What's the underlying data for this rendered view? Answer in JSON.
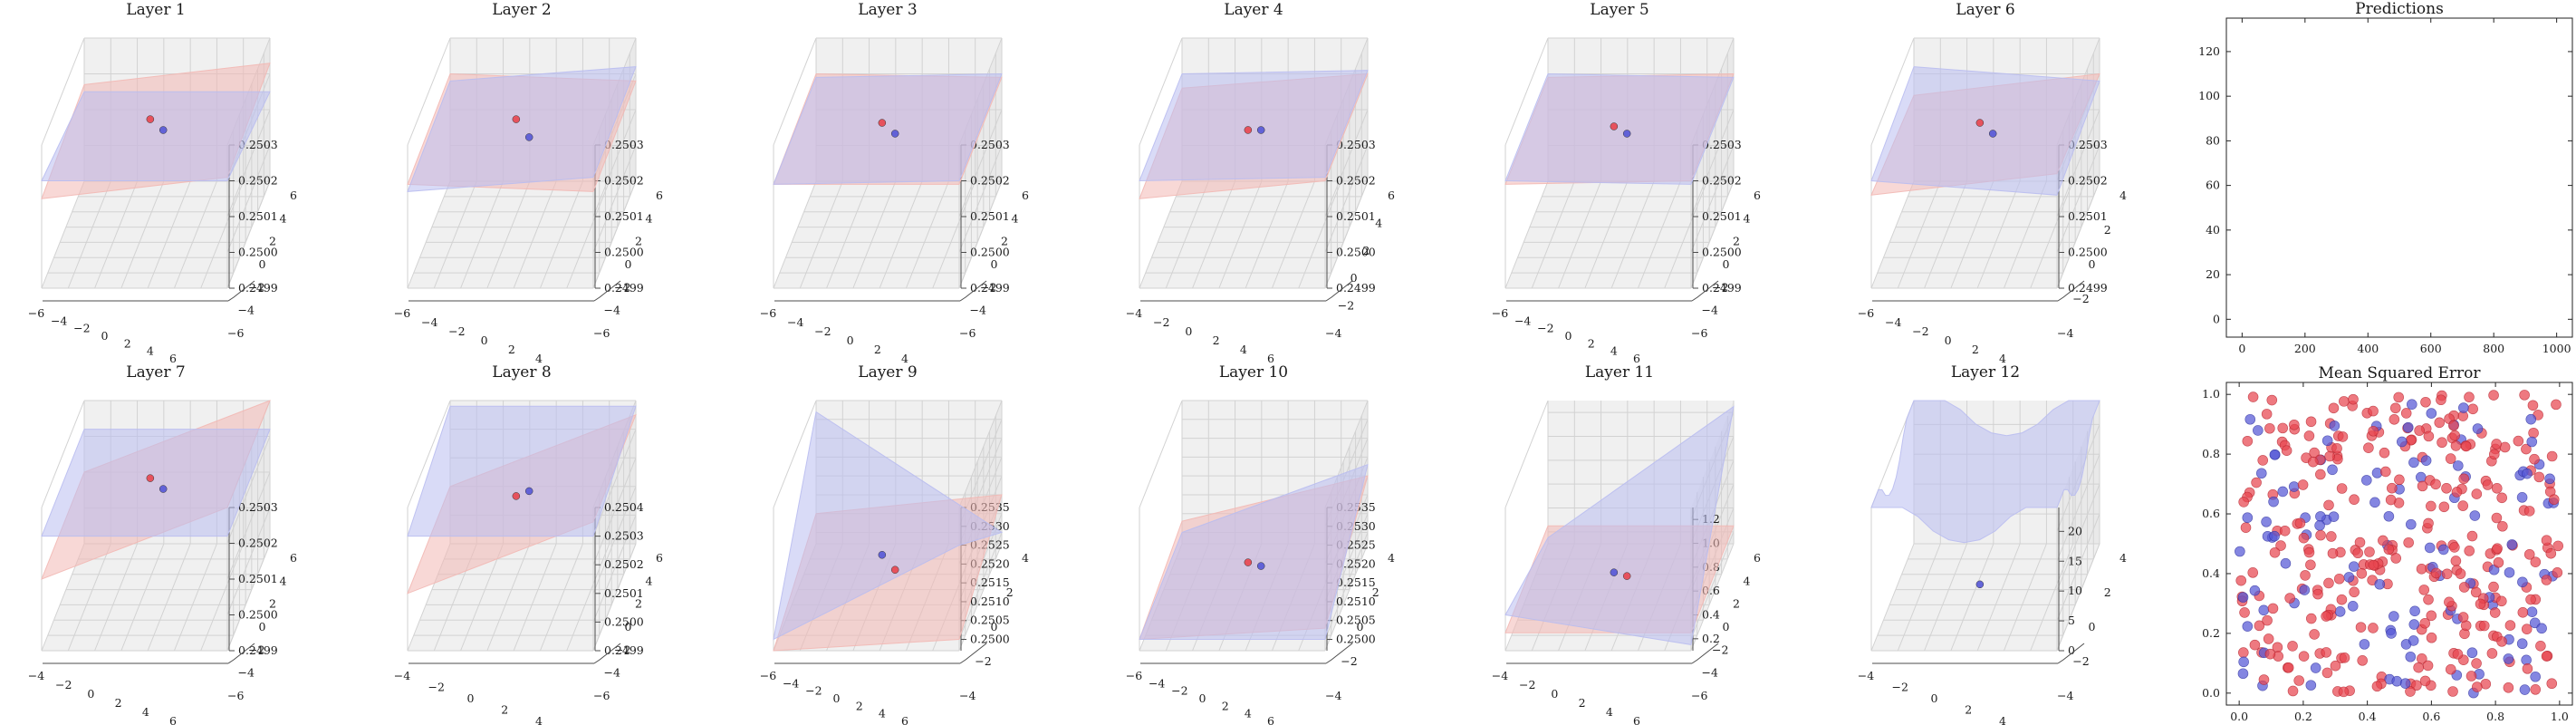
{
  "figure": {
    "panel_titles": [
      "Layer 1",
      "Layer 2",
      "Layer 3",
      "Layer 4",
      "Layer 5",
      "Layer 6",
      "Layer 7",
      "Layer 8",
      "Layer 9",
      "Layer 10",
      "Layer 11",
      "Layer 12"
    ]
  },
  "colors": {
    "red": "#e8454f",
    "blue": "#5557d6",
    "red_surface": "#f2b8b4",
    "blue_surface": "#b9bdf0"
  },
  "chart_data": [
    {
      "type": "surface3d",
      "title": "Layer 1",
      "xlabel": "",
      "ylabel": "",
      "zlabel": "",
      "xticks": [
        "−6",
        "−4",
        "−2",
        "0",
        "2",
        "4",
        "6"
      ],
      "yticks": [
        "−6",
        "−4",
        "−2",
        "0",
        "2",
        "4",
        "6"
      ],
      "zticks": [
        "0.2499",
        "0.2500",
        "0.2501",
        "0.2502",
        "0.2503"
      ],
      "zlim": [
        0.2499,
        0.2503
      ],
      "series": [
        {
          "name": "red plane",
          "z_corners": [
            0.25017,
            0.25023,
            0.25021,
            0.25015
          ]
        },
        {
          "name": "blue plane",
          "z_corners": [
            0.25015,
            0.25015,
            0.2502,
            0.2502
          ]
        }
      ],
      "points": [
        {
          "series": "red",
          "z": 0.25022
        },
        {
          "series": "blue",
          "z": 0.2502
        }
      ]
    },
    {
      "type": "surface3d",
      "title": "Layer 2",
      "xticks": [
        "−6",
        "−4",
        "−2",
        "0",
        "2",
        "4"
      ],
      "yticks": [
        "−6",
        "−4",
        "−2",
        "0",
        "2",
        "4",
        "6"
      ],
      "zticks": [
        "0.2499",
        "0.2500",
        "0.2501",
        "0.2502",
        "0.2503"
      ],
      "zlim": [
        0.2499,
        0.2503
      ],
      "series": [
        {
          "name": "red plane",
          "z_corners": [
            0.2502,
            0.25018,
            0.25017,
            0.25019
          ]
        },
        {
          "name": "blue plane",
          "z_corners": [
            0.25018,
            0.25022,
            0.25021,
            0.25017
          ]
        }
      ],
      "points": [
        {
          "series": "red",
          "z": 0.25022
        },
        {
          "series": "blue",
          "z": 0.25018
        }
      ]
    },
    {
      "type": "surface3d",
      "title": "Layer 3",
      "xticks": [
        "−6",
        "−4",
        "−2",
        "0",
        "2",
        "4"
      ],
      "yticks": [
        "−6",
        "−4",
        "−2",
        "0",
        "2",
        "4",
        "6"
      ],
      "zticks": [
        "0.2499",
        "0.2500",
        "0.2501",
        "0.2502",
        "0.2503"
      ],
      "zlim": [
        0.2499,
        0.2503
      ],
      "series": [
        {
          "name": "red plane",
          "z_corners": [
            0.2502,
            0.25019,
            0.25019,
            0.25019
          ]
        },
        {
          "name": "blue plane",
          "z_corners": [
            0.25019,
            0.2502,
            0.2502,
            0.25019
          ]
        }
      ],
      "points": [
        {
          "series": "red",
          "z": 0.25021
        },
        {
          "series": "blue",
          "z": 0.25019
        }
      ]
    },
    {
      "type": "surface3d",
      "title": "Layer 4",
      "xticks": [
        "−4",
        "−2",
        "0",
        "2",
        "4",
        "6"
      ],
      "yticks": [
        "−4",
        "−2",
        "0",
        "2",
        "4",
        "6"
      ],
      "zticks": [
        "0.2499",
        "0.2500",
        "0.2501",
        "0.2502",
        "0.2503"
      ],
      "zlim": [
        0.2499,
        0.2503
      ],
      "series": [
        {
          "name": "red plane",
          "z_corners": [
            0.25016,
            0.2502,
            0.2502,
            0.25015
          ]
        },
        {
          "name": "blue plane",
          "z_corners": [
            0.2502,
            0.25021,
            0.25021,
            0.2502
          ]
        }
      ],
      "points": [
        {
          "series": "red",
          "z": 0.25019
        },
        {
          "series": "blue",
          "z": 0.2502
        }
      ]
    },
    {
      "type": "surface3d",
      "title": "Layer 5",
      "xticks": [
        "−6",
        "−4",
        "−2",
        "0",
        "2",
        "4",
        "6"
      ],
      "yticks": [
        "−6",
        "−4",
        "−2",
        "0",
        "2",
        "4",
        "6"
      ],
      "zticks": [
        "0.2499",
        "0.2500",
        "0.2501",
        "0.2502",
        "0.2503"
      ],
      "zlim": [
        0.2499,
        0.2503
      ],
      "series": [
        {
          "name": "red plane",
          "z_corners": [
            0.25019,
            0.2502,
            0.2502,
            0.25019
          ]
        },
        {
          "name": "blue plane",
          "z_corners": [
            0.2502,
            0.25019,
            0.25019,
            0.2502
          ]
        }
      ],
      "points": [
        {
          "series": "red",
          "z": 0.2502
        },
        {
          "series": "blue",
          "z": 0.25019
        }
      ]
    },
    {
      "type": "surface3d",
      "title": "Layer 6",
      "xticks": [
        "−6",
        "−4",
        "−2",
        "0",
        "2",
        "4"
      ],
      "yticks": [
        "−4",
        "−2",
        "0",
        "2",
        "4"
      ],
      "zticks": [
        "0.2499",
        "0.2500",
        "0.2501",
        "0.2502",
        "0.2503"
      ],
      "zlim": [
        0.2499,
        0.2503
      ],
      "series": [
        {
          "name": "red plane",
          "z_corners": [
            0.25014,
            0.2502,
            0.25022,
            0.25016
          ]
        },
        {
          "name": "blue plane",
          "z_corners": [
            0.25022,
            0.25018,
            0.25016,
            0.2502
          ]
        }
      ],
      "points": [
        {
          "series": "red",
          "z": 0.25021
        },
        {
          "series": "blue",
          "z": 0.25019
        }
      ]
    },
    {
      "type": "surface3d",
      "title": "Layer 7",
      "xticks": [
        "−4",
        "−2",
        "0",
        "2",
        "4",
        "6"
      ],
      "yticks": [
        "−6",
        "−4",
        "−2",
        "0",
        "2",
        "4",
        "6"
      ],
      "zticks": [
        "0.2499",
        "0.2500",
        "0.2501",
        "0.2502",
        "0.2503"
      ],
      "zlim": [
        0.2499,
        0.2503
      ],
      "series": [
        {
          "name": "red plane",
          "z_corners": [
            0.2501,
            0.2503,
            0.2503,
            0.2501
          ]
        },
        {
          "name": "blue plane",
          "z_corners": [
            0.25022,
            0.25022,
            0.25022,
            0.25022
          ]
        }
      ],
      "points": [
        {
          "series": "red",
          "z": 0.25023
        },
        {
          "series": "blue",
          "z": 0.25021
        }
      ]
    },
    {
      "type": "surface3d",
      "title": "Layer 8",
      "xticks": [
        "−4",
        "−2",
        "0",
        "2",
        "4"
      ],
      "yticks": [
        "−6",
        "−4",
        "−2",
        "0",
        "2",
        "4",
        "6"
      ],
      "zticks": [
        "0.2499",
        "0.2500",
        "0.2501",
        "0.2502",
        "0.2503",
        "0.2504"
      ],
      "zlim": [
        0.2499,
        0.2504
      ],
      "series": [
        {
          "name": "red plane",
          "z_corners": [
            0.2501,
            0.25035,
            0.25035,
            0.2501
          ]
        },
        {
          "name": "blue surface",
          "z_corners": [
            0.25038,
            0.25038,
            0.2503,
            0.2503
          ]
        }
      ],
      "points": [
        {
          "series": "red",
          "z": 0.25025
        },
        {
          "series": "blue",
          "z": 0.25028
        }
      ]
    },
    {
      "type": "surface3d",
      "title": "Layer 9",
      "xticks": [
        "−6",
        "−4",
        "−2",
        "0",
        "2",
        "4",
        "6"
      ],
      "yticks": [
        "−4",
        "−2",
        "0",
        "2",
        "4"
      ],
      "zticks": [
        "0.2500",
        "0.2505",
        "0.2510",
        "0.2515",
        "0.2520",
        "0.2525",
        "0.2530",
        "0.2535"
      ],
      "zlim": [
        0.2497,
        0.2535
      ],
      "series": [
        {
          "name": "red surface",
          "z_corners": [
            0.2505,
            0.251,
            0.25,
            0.2497
          ]
        },
        {
          "name": "blue surface",
          "z_corners": [
            0.2532,
            0.25,
            0.2525,
            0.25
          ]
        }
      ],
      "points": [
        {
          "series": "blue",
          "z": 0.2508
        },
        {
          "series": "red",
          "z": 0.2505
        }
      ]
    },
    {
      "type": "surface3d",
      "title": "Layer 10",
      "xticks": [
        "−6",
        "−4",
        "−2",
        "0",
        "2",
        "4",
        "6"
      ],
      "yticks": [
        "−4",
        "−2",
        "0",
        "2",
        "4"
      ],
      "zticks": [
        "0.2500",
        "0.2505",
        "0.2510",
        "0.2515",
        "0.2520",
        "0.2525",
        "0.2530",
        "0.2535"
      ],
      "zlim": [
        0.2497,
        0.2535
      ],
      "series": [
        {
          "name": "red surface",
          "z_corners": [
            0.2503,
            0.2515,
            0.2503,
            0.25
          ]
        },
        {
          "name": "blue surface",
          "z_corners": [
            0.25,
            0.2518,
            0.25,
            0.25
          ]
        }
      ],
      "points": [
        {
          "series": "red",
          "z": 0.2506
        },
        {
          "series": "blue",
          "z": 0.2506
        }
      ]
    },
    {
      "type": "surface3d",
      "title": "Layer 11",
      "xticks": [
        "−4",
        "−2",
        "0",
        "2",
        "4",
        "6"
      ],
      "yticks": [
        "−6",
        "−4",
        "−2",
        "0",
        "2",
        "4",
        "6"
      ],
      "zticks": [
        "0.2",
        "0.4",
        "0.6",
        "0.8",
        "1.0",
        "1.2"
      ],
      "zlim": [
        0.1,
        1.3
      ],
      "series": [
        {
          "name": "red surface",
          "z_corners": [
            0.25,
            0.25,
            0.25,
            0.25
          ]
        },
        {
          "name": "blue surface",
          "z_corners": [
            0.15,
            1.25,
            0.15,
            0.4
          ]
        }
      ],
      "points": [
        {
          "series": "blue",
          "z": 0.3
        },
        {
          "series": "red",
          "z": 0.3
        }
      ]
    },
    {
      "type": "surface3d",
      "title": "Layer 12",
      "xticks": [
        "−4",
        "−2",
        "0",
        "2",
        "4"
      ],
      "yticks": [
        "−4",
        "−2",
        "0",
        "2",
        "4"
      ],
      "zticks": [
        "0",
        "5",
        "10",
        "15",
        "20"
      ],
      "zlim": [
        0,
        24
      ],
      "series": [
        {
          "name": "blue surface (quadratic bowl)",
          "z_corners": [
            20,
            22,
            18,
            12
          ]
        }
      ],
      "points": [
        {
          "series": "blue",
          "z": 2
        }
      ]
    },
    {
      "type": "line",
      "title": "Predictions",
      "xlabel": "",
      "ylabel": "",
      "xlim": [
        -50,
        1050
      ],
      "ylim": [
        -8,
        135
      ],
      "xticks": [
        0,
        200,
        400,
        600,
        800,
        1000
      ],
      "yticks": [
        0,
        20,
        40,
        60,
        80,
        100,
        120
      ],
      "series": []
    },
    {
      "type": "scatter",
      "title": "Mean Squared Error",
      "xlabel": "",
      "ylabel": "",
      "xlim": [
        -0.04,
        1.04
      ],
      "ylim": [
        -0.04,
        1.04
      ],
      "xticks": [
        "0.0",
        "0.2",
        "0.4",
        "0.6",
        "0.8",
        "1.0"
      ],
      "yticks": [
        "0.0",
        "0.2",
        "0.4",
        "0.6",
        "0.8",
        "1.0"
      ],
      "series": [
        {
          "name": "red",
          "count": 300,
          "distribution": "uniform [0,1]x[0,1]"
        },
        {
          "name": "blue",
          "count": 115,
          "distribution": "uniform [0,1]x[0,1]"
        }
      ]
    }
  ]
}
